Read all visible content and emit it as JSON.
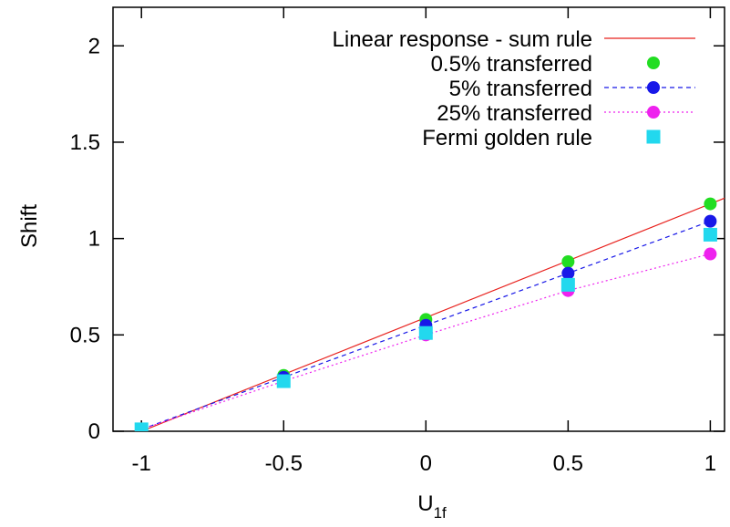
{
  "chart_data": {
    "type": "line",
    "xlabel": "U",
    "xlabel_sub": "1f",
    "ylabel": "Shift",
    "xlim": [
      -1.1,
      1.05
    ],
    "ylim": [
      0,
      2.2
    ],
    "xticks": [
      -1,
      -0.5,
      0,
      0.5,
      1
    ],
    "xtick_labels": [
      "-1",
      "-0.5",
      "0",
      "0.5",
      "1"
    ],
    "yticks": [
      0,
      0.5,
      1,
      1.5,
      2
    ],
    "ytick_labels": [
      "0",
      "0.5",
      "1",
      "1.5",
      "2"
    ],
    "grid": false,
    "legend_position": "top-right",
    "series": [
      {
        "name": "Linear response - sum rule",
        "style": "line",
        "color": "#e8201c",
        "x": [
          -1,
          1.05
        ],
        "y": [
          0,
          1.21
        ]
      },
      {
        "name": "0.5% transferred",
        "style": "points",
        "marker": "circle",
        "color": "#22dd22",
        "x": [
          -1,
          -0.5,
          0,
          0.5,
          1
        ],
        "y": [
          0.01,
          0.29,
          0.58,
          0.88,
          1.18
        ]
      },
      {
        "name": "5% transferred",
        "style": "dashed-points",
        "marker": "circle",
        "color": "#1818e8",
        "x": [
          -1,
          -0.5,
          0,
          0.5,
          1
        ],
        "y": [
          0.01,
          0.28,
          0.55,
          0.82,
          1.09
        ]
      },
      {
        "name": "25% transferred",
        "style": "dotted-points",
        "marker": "circle",
        "color": "#ee22ee",
        "x": [
          -1,
          -0.5,
          0,
          0.5,
          1
        ],
        "y": [
          0.01,
          0.26,
          0.5,
          0.73,
          0.92
        ]
      },
      {
        "name": "Fermi golden rule",
        "style": "points",
        "marker": "square",
        "color": "#22d8ee",
        "x": [
          -1,
          -0.5,
          0,
          0.5,
          1
        ],
        "y": [
          0.01,
          0.26,
          0.51,
          0.76,
          1.02
        ]
      }
    ]
  }
}
